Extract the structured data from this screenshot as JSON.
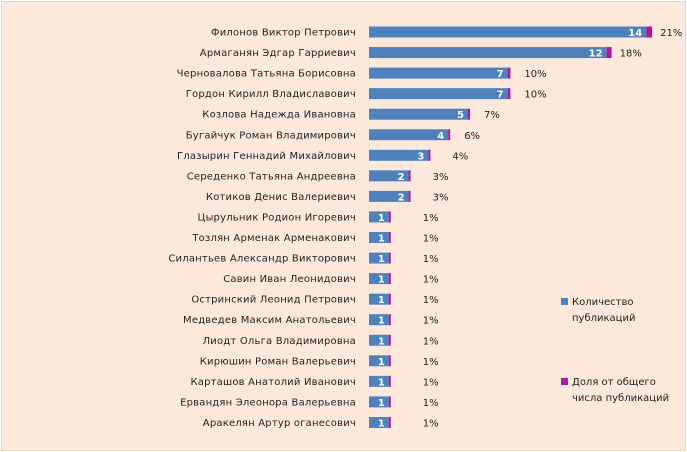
{
  "chart_data": {
    "type": "bar",
    "orientation": "horizontal",
    "stacked": true,
    "title": "",
    "xlabel": "",
    "ylabel": "",
    "grid": false,
    "legend_position": "right",
    "categories": [
      "Филонов Виктор Петрович",
      "Армаганян Эдгар Гарриевич",
      "Черновалова Татьяна Борисовна",
      "Гордон Кирилл Владиславович",
      "Козлова Надежда Ивановна",
      "Бугайчук Роман Владимирович",
      "Глазырин Геннадий Михайлович",
      "Середенко Татьяна Андреевна",
      "Котиков Денис Валериевич",
      "Цырульник Родион Игоревич",
      "Тозлян Арменак Арменакович",
      "Силантьев Александр Викторович",
      "Савин Иван Леонидович",
      "Остринский Леонид Петрович",
      "Медведев Максим Анатольевич",
      "Лиодт Ольга Владимировна",
      "Кирюшин Роман Валерьевич",
      "Карташов Анатолий Иванович",
      "Ервандян Элеонора Валерьевна",
      "Аракелян Артур оганесович"
    ],
    "series": [
      {
        "name": "Количество публикаций",
        "color": "#4f81bd",
        "values": [
          14,
          12,
          7,
          7,
          5,
          4,
          3,
          2,
          2,
          1,
          1,
          1,
          1,
          1,
          1,
          1,
          1,
          1,
          1,
          1
        ]
      },
      {
        "name": "Доля от общего числа публикаций",
        "color": "#b0189a",
        "values": [
          0.21,
          0.18,
          0.1,
          0.1,
          0.07,
          0.06,
          0.04,
          0.03,
          0.03,
          0.01,
          0.01,
          0.01,
          0.01,
          0.01,
          0.01,
          0.01,
          0.01,
          0.01,
          0.01,
          0.01
        ],
        "labels": [
          "21%",
          "18%",
          "10%",
          "10%",
          "7%",
          "6%",
          "4%",
          "3%",
          "3%",
          "1%",
          "1%",
          "1%",
          "1%",
          "1%",
          "1%",
          "1%",
          "1%",
          "1%",
          "1%",
          "1%"
        ]
      }
    ],
    "legend": [
      {
        "label_lines": [
          "Количество",
          "публикаций"
        ],
        "color": "#4f81bd"
      },
      {
        "label_lines": [
          "Доля от общего",
          "числа публикаций"
        ],
        "color": "#b0189a"
      }
    ]
  }
}
